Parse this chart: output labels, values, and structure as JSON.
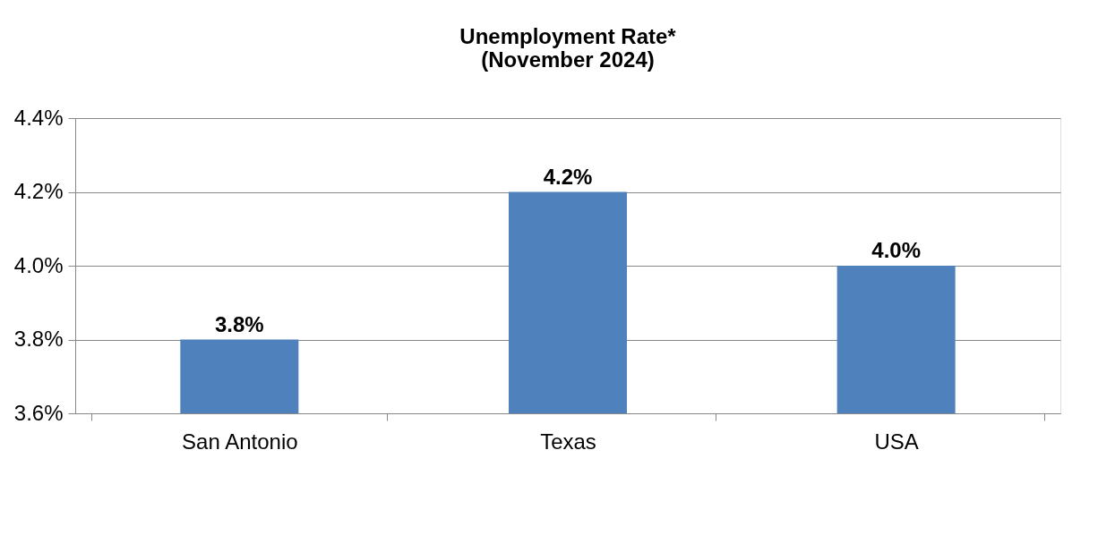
{
  "chart_data": {
    "type": "bar",
    "title": [
      "Unemployment Rate*",
      "(November 2024)"
    ],
    "categories": [
      "San Antonio",
      "Texas",
      "USA"
    ],
    "values": [
      3.8,
      4.2,
      4.0
    ],
    "value_labels": [
      "3.8%",
      "4.2%",
      "4.0%"
    ],
    "color": "#4f81bd",
    "ylim": [
      3.6,
      4.4
    ],
    "yticks": [
      {
        "value": 3.6,
        "label": "3.6%"
      },
      {
        "value": 3.8,
        "label": "3.8%"
      },
      {
        "value": 4.0,
        "label": "4.0%"
      },
      {
        "value": 4.2,
        "label": "4.2%"
      },
      {
        "value": 4.4,
        "label": "4.4%"
      }
    ],
    "grid": "y"
  }
}
